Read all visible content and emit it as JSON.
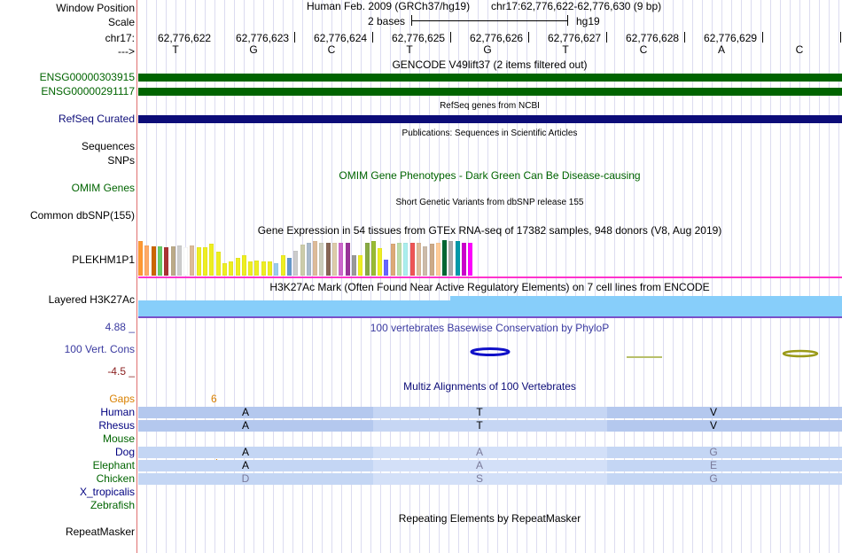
{
  "labels": {
    "window_position": "Window Position",
    "scale": "Scale",
    "chrom": "chr17:",
    "arrow": "--->",
    "ensg1": "ENSG00000303915",
    "ensg2": "ENSG00000291117",
    "refseq": "RefSeq Curated",
    "sequences": "Sequences",
    "snps": "SNPs",
    "omim": "OMIM Genes",
    "dbsnp": "Common dbSNP(155)",
    "gtex_gene": "PLEKHM1P1",
    "h3k27ac": "Layered H3K27Ac",
    "phylop_max": "4.88 _",
    "cons": "100 Vert. Cons",
    "phylop_min": "-4.5 _",
    "gaps": "Gaps",
    "repeatmasker": "RepeatMasker"
  },
  "header": {
    "assembly": "Human Feb. 2009 (GRCh37/hg19)",
    "position": "chr17:62,776,622-62,776,630 (9 bp)",
    "scale_text": "2 bases",
    "scale_db": "hg19"
  },
  "ruler": {
    "positions": [
      "62,776,622",
      "62,776,623",
      "62,776,624",
      "62,776,625",
      "62,776,626",
      "62,776,627",
      "62,776,628",
      "62,776,629"
    ],
    "bases": [
      "T",
      "G",
      "C",
      "T",
      "G",
      "T",
      "C",
      "A",
      "C"
    ]
  },
  "track_titles": {
    "gencode": "GENCODE V49lift37 (2 items filtered out)",
    "refseq": "RefSeq genes from NCBI",
    "publications": "Publications: Sequences in Scientific Articles",
    "omim": "OMIM Gene Phenotypes - Dark Green Can Be Disease-causing",
    "dbsnp": "Short Genetic Variants from dbSNP release 155",
    "gtex": "Gene Expression in 54 tissues from GTEx RNA-seq of 17382 samples, 948 donors (V8, Aug 2019)",
    "h3k27ac": "H3K27Ac Mark (Often Found Near Active Regulatory Elements) on 7 cell lines from ENCODE",
    "phylop": "100 vertebrates Basewise Conservation by PhyloP",
    "multiz": "Multiz Alignments of 100 Vertebrates",
    "repeatmasker": "Repeating Elements by RepeatMasker"
  },
  "gaps_count": "6",
  "species": [
    {
      "name": "Human",
      "color": "#000080",
      "aa": [
        "A",
        "T",
        "V"
      ],
      "shade": "dark"
    },
    {
      "name": "Rhesus",
      "color": "#000080",
      "aa": [
        "A",
        "T",
        "V"
      ],
      "shade": "dark"
    },
    {
      "name": "Mouse",
      "color": "#006400",
      "aa": [
        "",
        "",
        ""
      ],
      "shade": "none"
    },
    {
      "name": "Dog",
      "color": "#000080",
      "aa": [
        "A",
        "A",
        "G"
      ],
      "shade": "light"
    },
    {
      "name": "Elephant",
      "color": "#006400",
      "aa": [
        "A",
        "A",
        "E"
      ],
      "shade": "light"
    },
    {
      "name": "Chicken",
      "color": "#006400",
      "aa": [
        "D",
        "S",
        "G"
      ],
      "shade": "light"
    },
    {
      "name": "X_tropicalis",
      "color": "#000080",
      "aa": [
        "",
        "",
        ""
      ],
      "shade": "none"
    },
    {
      "name": "Zebrafish",
      "color": "#006400",
      "aa": [
        "",
        "",
        ""
      ],
      "shade": "none"
    }
  ],
  "gtex_colors": [
    "#FF9933",
    "#FFAA66",
    "#CC6600",
    "#66CC66",
    "#AA3333",
    "#BBAA88",
    "#CCCCCC",
    "#FFFFFF",
    "#DDBB99",
    "#EEEE22",
    "#EEEE22",
    "#EEEE22",
    "#EEEE22",
    "#EEEE22",
    "#EEEE22",
    "#EEEE22",
    "#EEEE22",
    "#EEEE22",
    "#EEEE22",
    "#EEEE22",
    "#EEEE22",
    "#99CCEE",
    "#EEEE22",
    "#6699CC",
    "#CCCCCC",
    "#CCCCAA",
    "#AABBCC",
    "#DDBB99",
    "#CCCCBB",
    "#886655",
    "#DDCCAA",
    "#CC66CC",
    "#993399",
    "#999999",
    "#EEEE22",
    "#88AA44",
    "#99BB33",
    "#EEEE22",
    "#6666FF",
    "#DDAA77",
    "#BBDDAA",
    "#AAEEEE",
    "#EE5555",
    "#DDBB99",
    "#CCBBAA",
    "#CCAA88",
    "#FFCC99",
    "#006633",
    "#AAAAAA",
    "#0099AA",
    "#CC00CC",
    "#FF00FF"
  ],
  "gtex_levels": [
    0.95,
    0.83,
    0.8,
    0.8,
    0.78,
    0.8,
    0.83,
    0.78,
    0.83,
    0.78,
    0.78,
    0.88,
    0.65,
    0.35,
    0.4,
    0.48,
    0.55,
    0.4,
    0.42,
    0.38,
    0.4,
    0.35,
    0.55,
    0.48,
    0.68,
    0.85,
    0.9,
    0.95,
    0.9,
    0.9,
    0.9,
    0.9,
    0.9,
    0.55,
    0.55,
    0.9,
    0.95,
    0.75,
    0.45,
    0.88,
    0.9,
    0.9,
    0.9,
    0.9,
    0.8,
    0.88,
    0.9,
    0.98,
    0.95,
    0.95,
    0.9,
    0.9
  ],
  "colors": {
    "gencode": "#006400",
    "refseq": "#0C0C78",
    "h3k27ac": "#87CEFA",
    "pink_line": "#FF33CC",
    "aln_dark": "#B4C8EE",
    "aln_light": "#CCDDF8"
  }
}
